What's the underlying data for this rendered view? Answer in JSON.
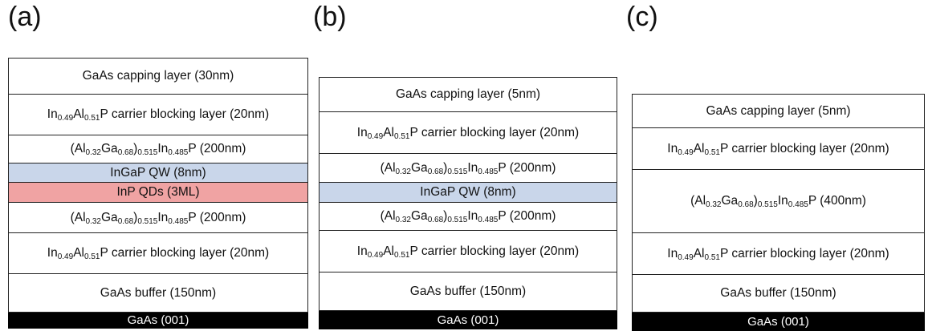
{
  "colors": {
    "quantum_well": "#c9d6ea",
    "quantum_dots": "#f0a3a3",
    "substrate": "#000000",
    "border": "#222222"
  },
  "panels": [
    {
      "label": "(a)",
      "layers": [
        {
          "type": "plain",
          "text": "GaAs capping layer (30nm)"
        },
        {
          "type": "ingap_blocking",
          "mid": "P carrier blocking layer (20nm)"
        },
        {
          "type": "algainp",
          "tail": "P (200nm)"
        },
        {
          "type": "qw",
          "text": "InGaP QW (8nm)"
        },
        {
          "type": "qd",
          "text": "InP QDs (3ML)"
        },
        {
          "type": "algainp",
          "tail": "P (200nm)"
        },
        {
          "type": "ingap_blocking",
          "mid": "P carrier blocking layer (20nm)"
        },
        {
          "type": "plain",
          "text": "GaAs buffer (150nm)"
        },
        {
          "type": "substrate",
          "text": "GaAs (001)"
        }
      ]
    },
    {
      "label": "(b)",
      "layers": [
        {
          "type": "plain",
          "text": "GaAs capping layer (5nm)"
        },
        {
          "type": "ingap_blocking",
          "mid": "P carrier blocking layer (20nm)"
        },
        {
          "type": "algainp",
          "tail": "P (200nm)"
        },
        {
          "type": "qw",
          "text": "InGaP QW (8nm)"
        },
        {
          "type": "algainp",
          "tail": "P (200nm)"
        },
        {
          "type": "ingap_blocking",
          "mid": "P carrier blocking layer (20nm)"
        },
        {
          "type": "plain",
          "text": "GaAs buffer (150nm)"
        },
        {
          "type": "substrate",
          "text": "GaAs (001)"
        }
      ]
    },
    {
      "label": "(c)",
      "layers": [
        {
          "type": "plain",
          "text": "GaAs capping layer (5nm)"
        },
        {
          "type": "ingap_blocking",
          "mid": "P carrier blocking layer (20nm)"
        },
        {
          "type": "algainp",
          "tail": "P (400nm)"
        },
        {
          "type": "ingap_blocking",
          "mid": "P carrier blocking layer (20nm)"
        },
        {
          "type": "plain",
          "text": "GaAs buffer (150nm)"
        },
        {
          "type": "substrate",
          "text": "GaAs (001)"
        }
      ]
    }
  ],
  "formula": {
    "in": "In",
    "in_x": "0.49",
    "al": "Al",
    "al_x": "0.51",
    "paren_open": "(Al",
    "al2_x": "0.32",
    "ga": "Ga",
    "ga_x": "0.68",
    "paren_close": ")",
    "group_x": "0.515",
    "in2": "In",
    "in2_x": "0.485"
  }
}
